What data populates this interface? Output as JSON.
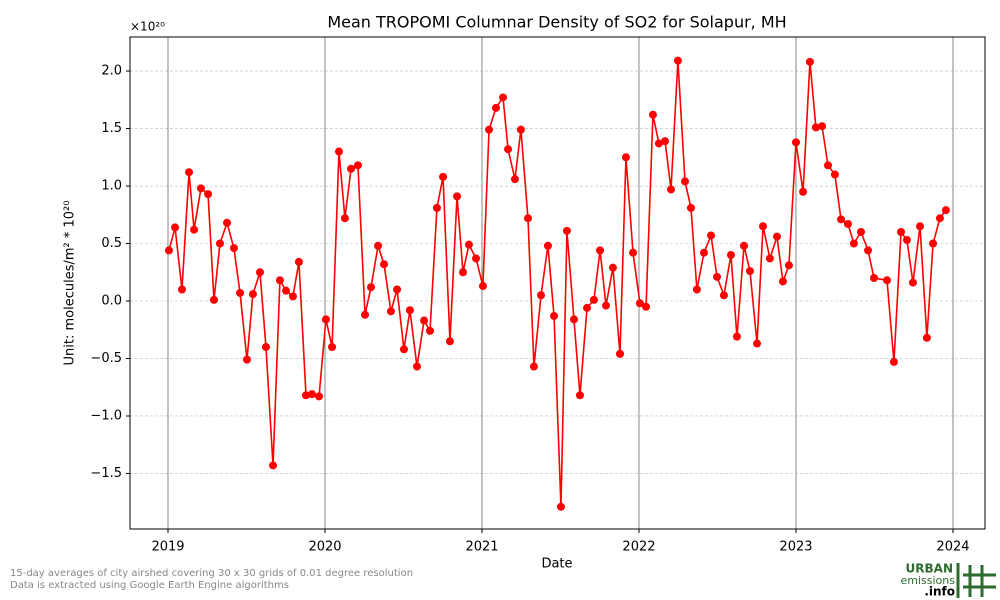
{
  "chart_data": {
    "type": "line",
    "title": "Mean TROPOMI Columnar Density of SO2 for Solapur, MH",
    "axis_offset": "×10²⁰",
    "ylabel": "Unit: molecules/m² * 10²⁰",
    "xlabel": "Date",
    "color": "#ff0000",
    "x": [
      2019.006,
      2019.045,
      2019.089,
      2019.134,
      2019.166,
      2019.21,
      2019.255,
      2019.293,
      2019.331,
      2019.376,
      2019.42,
      2019.459,
      2019.503,
      2019.541,
      2019.586,
      2019.624,
      2019.669,
      2019.713,
      2019.752,
      2019.796,
      2019.834,
      2019.879,
      2019.917,
      2019.962,
      2020.006,
      2020.045,
      2020.089,
      2020.127,
      2020.166,
      2020.21,
      2020.255,
      2020.293,
      2020.338,
      2020.376,
      2020.42,
      2020.459,
      2020.503,
      2020.541,
      2020.586,
      2020.631,
      2020.669,
      2020.713,
      2020.752,
      2020.796,
      2020.841,
      2020.879,
      2020.917,
      2020.962,
      2021.006,
      2021.045,
      2021.089,
      2021.134,
      2021.166,
      2021.21,
      2021.248,
      2021.293,
      2021.331,
      2021.376,
      2021.42,
      2021.459,
      2021.503,
      2021.541,
      2021.586,
      2021.624,
      2021.669,
      2021.713,
      2021.752,
      2021.79,
      2021.834,
      2021.879,
      2021.917,
      2021.962,
      2022.006,
      2022.045,
      2022.089,
      2022.127,
      2022.166,
      2022.204,
      2022.248,
      2022.293,
      2022.331,
      2022.369,
      2022.414,
      2022.459,
      2022.497,
      2022.541,
      2022.586,
      2022.624,
      2022.669,
      2022.707,
      2022.752,
      2022.79,
      2022.834,
      2022.879,
      2022.917,
      2022.955,
      2023.0,
      2023.045,
      2023.089,
      2023.127,
      2023.166,
      2023.204,
      2023.248,
      2023.287,
      2023.331,
      2023.369,
      2023.414,
      2023.459,
      2023.497,
      2023.58,
      2023.624,
      2023.669,
      2023.707,
      2023.745,
      2023.79,
      2023.834,
      2023.873,
      2023.917,
      2023.955
    ],
    "values": [
      0.44,
      0.64,
      0.1,
      1.12,
      0.62,
      0.98,
      0.93,
      0.01,
      0.5,
      0.68,
      0.46,
      0.07,
      -0.51,
      0.06,
      0.25,
      -0.4,
      -1.43,
      0.18,
      0.09,
      0.04,
      0.34,
      -0.82,
      -0.81,
      -0.83,
      -0.16,
      -0.4,
      1.3,
      0.72,
      1.15,
      1.18,
      -0.12,
      0.12,
      0.48,
      0.32,
      -0.09,
      0.1,
      -0.42,
      -0.08,
      -0.57,
      -0.17,
      -0.26,
      0.81,
      1.08,
      -0.35,
      0.91,
      0.25,
      0.49,
      0.37,
      0.13,
      1.49,
      1.68,
      1.77,
      1.32,
      1.06,
      1.49,
      0.72,
      -0.57,
      0.05,
      0.48,
      -0.13,
      -1.79,
      0.61,
      -0.16,
      -0.82,
      -0.06,
      0.01,
      0.44,
      -0.04,
      0.29,
      -0.46,
      1.25,
      0.42,
      -0.02,
      -0.05,
      1.62,
      1.37,
      1.39,
      0.97,
      2.09,
      1.04,
      0.81,
      0.1,
      0.42,
      0.57,
      0.21,
      0.05,
      0.4,
      -0.31,
      0.48,
      0.26,
      -0.37,
      0.65,
      0.37,
      0.56,
      0.17,
      0.31,
      1.38,
      0.95,
      2.08,
      1.51,
      1.52,
      1.18,
      1.1,
      0.71,
      0.67,
      0.5,
      0.6,
      0.44,
      0.2,
      0.18,
      -0.53,
      0.6,
      0.53,
      0.16,
      0.65,
      -0.32,
      0.5,
      0.72,
      0.79
    ],
    "xlim": [
      2018.758,
      2024.204
    ],
    "xticks": [
      2019,
      2020,
      2021,
      2022,
      2023,
      2024
    ],
    "ylim": [
      -1.983,
      2.296
    ],
    "yticks": [
      {
        "value": -1.5,
        "label": "−1.5"
      },
      {
        "value": -1,
        "label": "−1.0"
      },
      {
        "value": -0.5,
        "label": "−0.5"
      },
      {
        "value": 0,
        "label": "0.0"
      },
      0.5,
      {
        "value": 1,
        "label": "1.0"
      },
      1.5,
      {
        "value": 2,
        "label": "2.0"
      }
    ],
    "grid": true
  },
  "footer": {
    "notes": [
      "15-day averages of city airshed covering 30 x 30 grids of 0.01 degree resolution",
      "Data is extracted using Google Earth Engine algorithms"
    ],
    "logo": [
      "URBAN",
      "emissions",
      ".info"
    ]
  }
}
